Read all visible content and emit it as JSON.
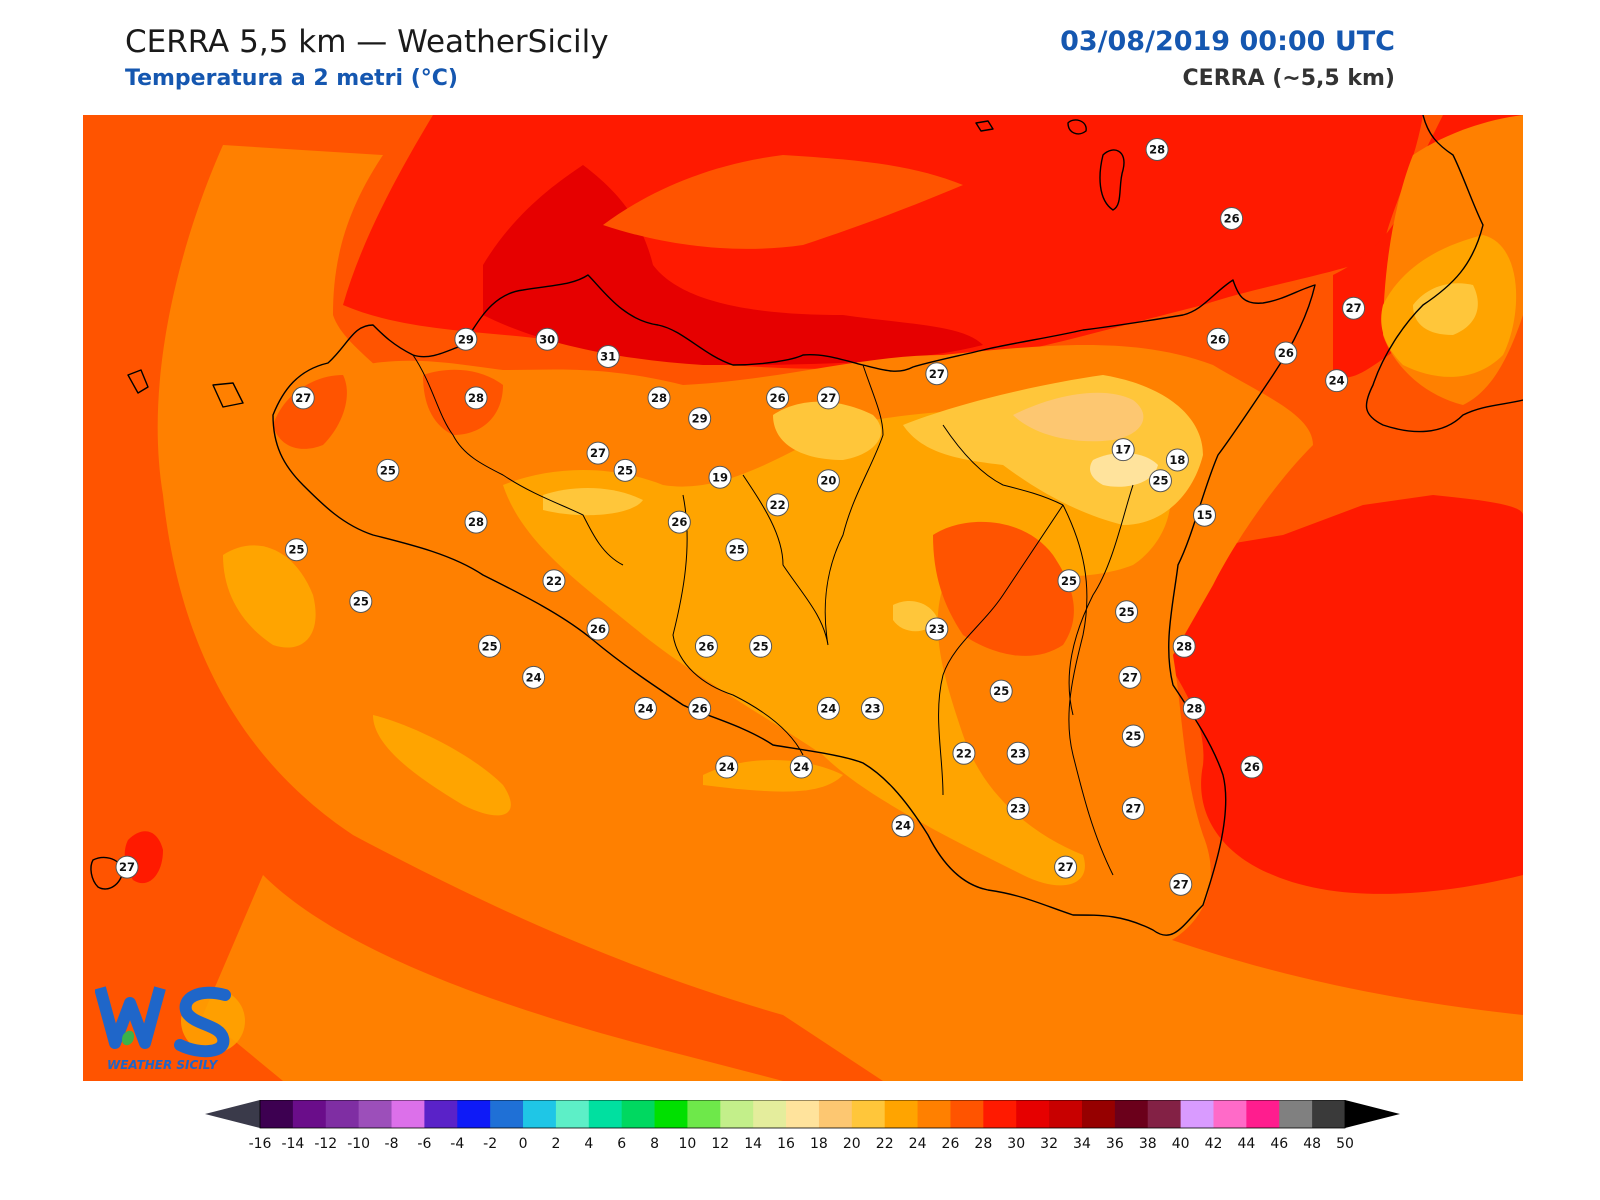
{
  "header": {
    "title": "CERRA 5,5 km — WeatherSicily",
    "subtitle": "Temperatura a 2 metri (°C)",
    "datetime": "03/08/2019 00:00 UTC",
    "model": "CERRA (~5,5 km)"
  },
  "logo": {
    "text": "WEATHER SICILY",
    "mark": "WS"
  },
  "colors": {
    "accent_blue": "#1557b0",
    "map_background": "#ff5500"
  },
  "stations": [
    {
      "label": "28",
      "lon": 14.97,
      "lat": 38.95
    },
    {
      "label": "26",
      "lon": 15.19,
      "lat": 38.75
    },
    {
      "label": "29",
      "lon": 12.93,
      "lat": 38.4
    },
    {
      "label": "30",
      "lon": 13.17,
      "lat": 38.4
    },
    {
      "label": "31",
      "lon": 13.35,
      "lat": 38.35
    },
    {
      "label": "27",
      "lon": 15.55,
      "lat": 38.49
    },
    {
      "label": "26",
      "lon": 15.15,
      "lat": 38.4
    },
    {
      "label": "26",
      "lon": 15.35,
      "lat": 38.36
    },
    {
      "label": "24",
      "lon": 15.5,
      "lat": 38.28
    },
    {
      "label": "27",
      "lon": 12.45,
      "lat": 38.23
    },
    {
      "label": "28",
      "lon": 12.96,
      "lat": 38.23
    },
    {
      "label": "28",
      "lon": 13.5,
      "lat": 38.23
    },
    {
      "label": "29",
      "lon": 13.62,
      "lat": 38.17
    },
    {
      "label": "26",
      "lon": 13.85,
      "lat": 38.23
    },
    {
      "label": "27",
      "lon": 14.0,
      "lat": 38.23
    },
    {
      "label": "27",
      "lon": 14.32,
      "lat": 38.3
    },
    {
      "label": "18",
      "lon": 15.03,
      "lat": 38.05
    },
    {
      "label": "17",
      "lon": 14.87,
      "lat": 38.08
    },
    {
      "label": "25",
      "lon": 12.7,
      "lat": 38.02
    },
    {
      "label": "27",
      "lon": 13.32,
      "lat": 38.07
    },
    {
      "label": "25",
      "lon": 13.4,
      "lat": 38.02
    },
    {
      "label": "19",
      "lon": 13.68,
      "lat": 38.0
    },
    {
      "label": "22",
      "lon": 13.85,
      "lat": 37.92
    },
    {
      "label": "20",
      "lon": 14.0,
      "lat": 37.99
    },
    {
      "label": "25",
      "lon": 14.98,
      "lat": 37.99
    },
    {
      "label": "15",
      "lon": 15.11,
      "lat": 37.89
    },
    {
      "label": "28",
      "lon": 12.96,
      "lat": 37.87
    },
    {
      "label": "26",
      "lon": 13.56,
      "lat": 37.87
    },
    {
      "label": "25",
      "lon": 12.43,
      "lat": 37.79
    },
    {
      "label": "25",
      "lon": 13.73,
      "lat": 37.79
    },
    {
      "label": "22",
      "lon": 13.19,
      "lat": 37.7
    },
    {
      "label": "25",
      "lon": 14.71,
      "lat": 37.7
    },
    {
      "label": "25",
      "lon": 14.88,
      "lat": 37.61
    },
    {
      "label": "25",
      "lon": 12.62,
      "lat": 37.64
    },
    {
      "label": "26",
      "lon": 13.32,
      "lat": 37.56
    },
    {
      "label": "23",
      "lon": 14.32,
      "lat": 37.56
    },
    {
      "label": "25",
      "lon": 13.0,
      "lat": 37.51
    },
    {
      "label": "26",
      "lon": 13.64,
      "lat": 37.51
    },
    {
      "label": "25",
      "lon": 13.8,
      "lat": 37.51
    },
    {
      "label": "28",
      "lon": 15.05,
      "lat": 37.51
    },
    {
      "label": "24",
      "lon": 13.13,
      "lat": 37.42
    },
    {
      "label": "27",
      "lon": 14.89,
      "lat": 37.42
    },
    {
      "label": "25",
      "lon": 14.51,
      "lat": 37.38
    },
    {
      "label": "24",
      "lon": 13.46,
      "lat": 37.33
    },
    {
      "label": "26",
      "lon": 13.62,
      "lat": 37.33
    },
    {
      "label": "24",
      "lon": 14.0,
      "lat": 37.33
    },
    {
      "label": "23",
      "lon": 14.13,
      "lat": 37.33
    },
    {
      "label": "28",
      "lon": 15.08,
      "lat": 37.33
    },
    {
      "label": "25",
      "lon": 14.9,
      "lat": 37.25
    },
    {
      "label": "22",
      "lon": 14.4,
      "lat": 37.2
    },
    {
      "label": "23",
      "lon": 14.56,
      "lat": 37.2
    },
    {
      "label": "26",
      "lon": 15.25,
      "lat": 37.16
    },
    {
      "label": "24",
      "lon": 13.7,
      "lat": 37.16
    },
    {
      "label": "24",
      "lon": 13.92,
      "lat": 37.16
    },
    {
      "label": "23",
      "lon": 14.56,
      "lat": 37.04
    },
    {
      "label": "27",
      "lon": 14.9,
      "lat": 37.04
    },
    {
      "label": "24",
      "lon": 14.22,
      "lat": 36.99
    },
    {
      "label": "27",
      "lon": 14.7,
      "lat": 36.87
    },
    {
      "label": "27",
      "lon": 15.04,
      "lat": 36.82
    },
    {
      "label": "27",
      "lon": 11.93,
      "lat": 36.87
    }
  ],
  "colorbar": {
    "ticks": [
      "-16",
      "-14",
      "-12",
      "-10",
      "-8",
      "-6",
      "-4",
      "-2",
      "0",
      "2",
      "4",
      "6",
      "8",
      "10",
      "12",
      "14",
      "16",
      "18",
      "20",
      "22",
      "24",
      "26",
      "28",
      "30",
      "32",
      "34",
      "36",
      "38",
      "40",
      "42",
      "44",
      "46",
      "48",
      "50"
    ],
    "colors": [
      "#3d0051",
      "#6a0d8a",
      "#7f2ea3",
      "#9c4fba",
      "#dc70ea",
      "#5a22c8",
      "#0e1af7",
      "#1f70d6",
      "#1fc6e6",
      "#5defc7",
      "#00e0a0",
      "#00d860",
      "#00e000",
      "#6ee84a",
      "#c3ef8a",
      "#e4ed9c",
      "#ffe39c",
      "#fdc771",
      "#ffc63a",
      "#ffa400",
      "#ff8000",
      "#ff5400",
      "#ff1a00",
      "#e60000",
      "#c80000",
      "#960000",
      "#6b001b",
      "#832145",
      "#d99bff",
      "#ff6ac8",
      "#ff1d8e",
      "#808080",
      "#3a3a3a"
    ],
    "min": -16,
    "max": 50,
    "step": 2
  }
}
